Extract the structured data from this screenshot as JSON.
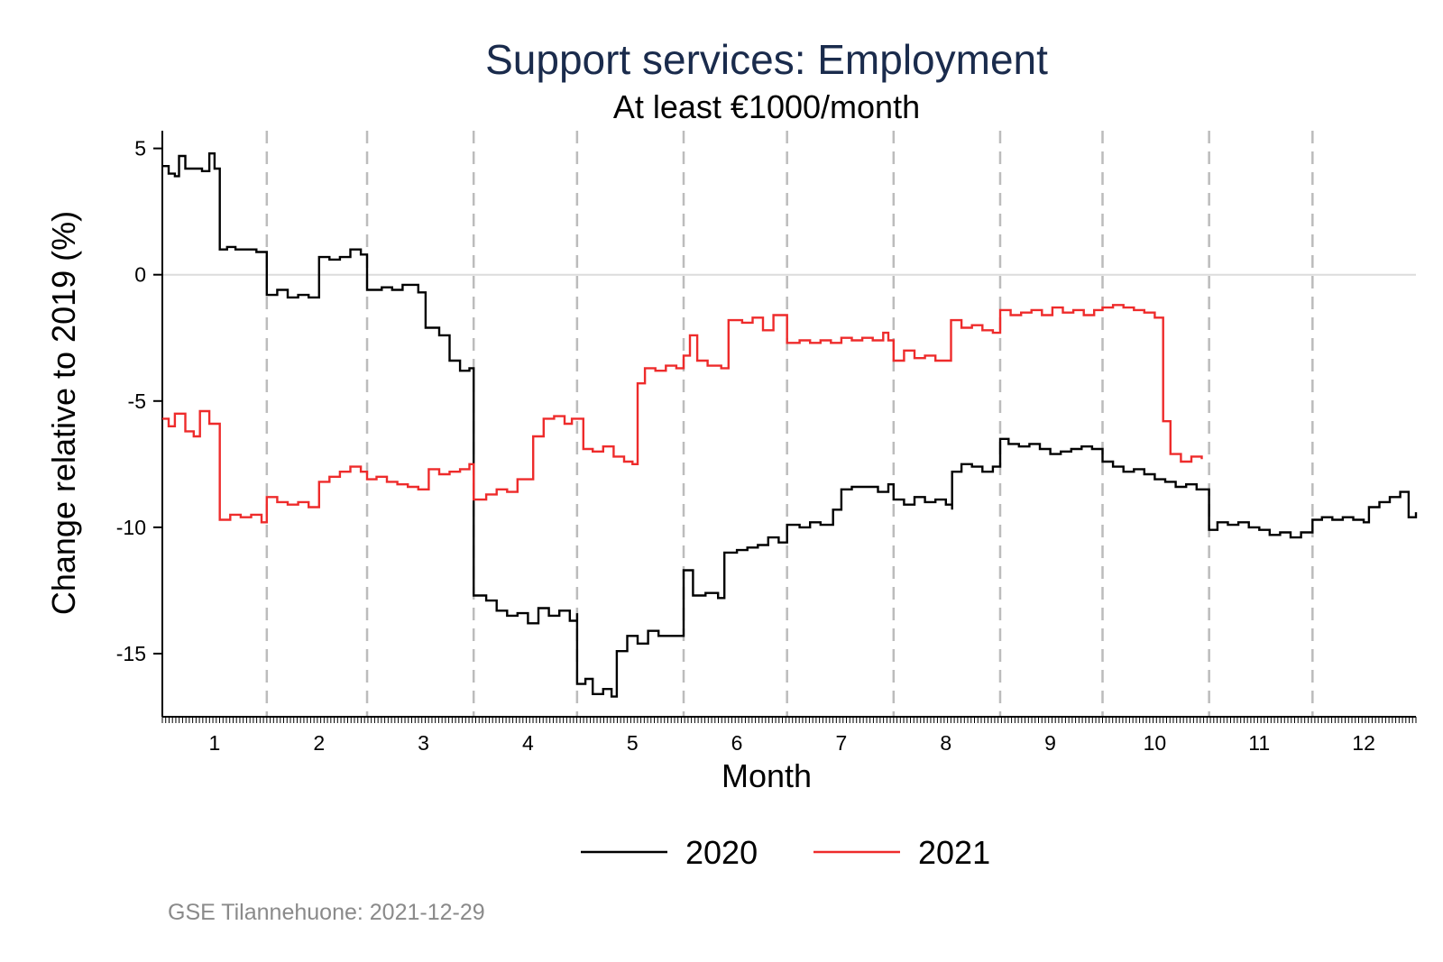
{
  "chart_data": {
    "type": "line",
    "title": "Support services: Employment",
    "subtitle": "At least €1000/month",
    "xlabel": "Month",
    "ylabel": "Change relative to 2019 (%)",
    "xlim": [
      0.5,
      12.5
    ],
    "ylim": [
      -17.5,
      5.7
    ],
    "x_ticks": [
      1,
      2,
      3,
      4,
      5,
      6,
      7,
      8,
      9,
      10,
      11,
      12
    ],
    "y_ticks": [
      5,
      0,
      -5,
      -10,
      -15
    ],
    "y_tick_labels": [
      "5",
      "0",
      "-5",
      "-10",
      "-15"
    ],
    "month_dividers": [
      1.5,
      2.46,
      3.48,
      4.47,
      5.49,
      6.48,
      7.5,
      8.52,
      9.5,
      10.52,
      11.51
    ],
    "reference_line_y": 0,
    "grid": false,
    "legend_position": "bottom",
    "series": [
      {
        "name": "2020",
        "color": "#000000",
        "points": [
          [
            0.5,
            4.3
          ],
          [
            0.56,
            4.0
          ],
          [
            0.62,
            3.9
          ],
          [
            0.66,
            4.7
          ],
          [
            0.72,
            4.2
          ],
          [
            0.88,
            4.1
          ],
          [
            0.95,
            4.8
          ],
          [
            1.0,
            4.2
          ],
          [
            1.05,
            1.0
          ],
          [
            1.12,
            1.1
          ],
          [
            1.2,
            1.0
          ],
          [
            1.3,
            1.0
          ],
          [
            1.4,
            0.9
          ],
          [
            1.5,
            0.6
          ],
          [
            1.5,
            -0.8
          ],
          [
            1.6,
            -0.6
          ],
          [
            1.7,
            -0.9
          ],
          [
            1.8,
            -0.8
          ],
          [
            1.9,
            -0.9
          ],
          [
            2.0,
            0.7
          ],
          [
            2.1,
            0.6
          ],
          [
            2.2,
            0.7
          ],
          [
            2.3,
            1.0
          ],
          [
            2.4,
            0.8
          ],
          [
            2.46,
            0.5
          ],
          [
            2.46,
            -0.6
          ],
          [
            2.6,
            -0.5
          ],
          [
            2.7,
            -0.6
          ],
          [
            2.8,
            -0.4
          ],
          [
            2.95,
            -0.7
          ],
          [
            3.02,
            -2.1
          ],
          [
            3.15,
            -2.4
          ],
          [
            3.25,
            -3.4
          ],
          [
            3.35,
            -3.8
          ],
          [
            3.44,
            -3.7
          ],
          [
            3.48,
            -4.0
          ],
          [
            3.48,
            -12.7
          ],
          [
            3.6,
            -12.9
          ],
          [
            3.7,
            -13.3
          ],
          [
            3.8,
            -13.5
          ],
          [
            3.9,
            -13.4
          ],
          [
            4.0,
            -13.8
          ],
          [
            4.1,
            -13.2
          ],
          [
            4.2,
            -13.5
          ],
          [
            4.3,
            -13.3
          ],
          [
            4.4,
            -13.7
          ],
          [
            4.47,
            -13.4
          ],
          [
            4.47,
            -16.2
          ],
          [
            4.55,
            -16.0
          ],
          [
            4.62,
            -16.6
          ],
          [
            4.72,
            -16.4
          ],
          [
            4.8,
            -16.7
          ],
          [
            4.85,
            -14.9
          ],
          [
            4.95,
            -14.3
          ],
          [
            5.05,
            -14.6
          ],
          [
            5.15,
            -14.1
          ],
          [
            5.25,
            -14.3
          ],
          [
            5.4,
            -14.3
          ],
          [
            5.49,
            -11.7
          ],
          [
            5.58,
            -12.7
          ],
          [
            5.7,
            -12.6
          ],
          [
            5.82,
            -12.8
          ],
          [
            5.88,
            -11.0
          ],
          [
            6.0,
            -10.9
          ],
          [
            6.1,
            -10.8
          ],
          [
            6.2,
            -10.7
          ],
          [
            6.3,
            -10.4
          ],
          [
            6.4,
            -10.6
          ],
          [
            6.48,
            -9.9
          ],
          [
            6.6,
            -10.0
          ],
          [
            6.7,
            -9.8
          ],
          [
            6.8,
            -9.9
          ],
          [
            6.92,
            -9.3
          ],
          [
            7.0,
            -8.5
          ],
          [
            7.1,
            -8.4
          ],
          [
            7.25,
            -8.4
          ],
          [
            7.35,
            -8.6
          ],
          [
            7.45,
            -8.3
          ],
          [
            7.5,
            -8.6
          ],
          [
            7.5,
            -8.9
          ],
          [
            7.6,
            -9.1
          ],
          [
            7.7,
            -8.8
          ],
          [
            7.8,
            -9.0
          ],
          [
            7.9,
            -8.9
          ],
          [
            8.0,
            -9.1
          ],
          [
            8.06,
            -9.3
          ],
          [
            8.06,
            -7.8
          ],
          [
            8.15,
            -7.5
          ],
          [
            8.25,
            -7.6
          ],
          [
            8.35,
            -7.8
          ],
          [
            8.45,
            -7.6
          ],
          [
            8.52,
            -6.5
          ],
          [
            8.6,
            -6.7
          ],
          [
            8.7,
            -6.8
          ],
          [
            8.8,
            -6.7
          ],
          [
            8.9,
            -6.9
          ],
          [
            9.0,
            -7.1
          ],
          [
            9.1,
            -7.0
          ],
          [
            9.2,
            -6.9
          ],
          [
            9.3,
            -6.8
          ],
          [
            9.4,
            -6.9
          ],
          [
            9.5,
            -7.4
          ],
          [
            9.6,
            -7.6
          ],
          [
            9.7,
            -7.8
          ],
          [
            9.8,
            -7.7
          ],
          [
            9.9,
            -7.9
          ],
          [
            10.0,
            -8.1
          ],
          [
            10.1,
            -8.2
          ],
          [
            10.2,
            -8.4
          ],
          [
            10.3,
            -8.3
          ],
          [
            10.4,
            -8.5
          ],
          [
            10.52,
            -10.1
          ],
          [
            10.6,
            -9.8
          ],
          [
            10.7,
            -9.9
          ],
          [
            10.8,
            -9.8
          ],
          [
            10.9,
            -10.0
          ],
          [
            11.0,
            -10.1
          ],
          [
            11.1,
            -10.3
          ],
          [
            11.2,
            -10.2
          ],
          [
            11.3,
            -10.4
          ],
          [
            11.4,
            -10.2
          ],
          [
            11.51,
            -9.7
          ],
          [
            11.6,
            -9.6
          ],
          [
            11.7,
            -9.7
          ],
          [
            11.8,
            -9.6
          ],
          [
            11.9,
            -9.7
          ],
          [
            12.0,
            -9.8
          ],
          [
            12.05,
            -9.2
          ],
          [
            12.15,
            -9.0
          ],
          [
            12.25,
            -8.8
          ],
          [
            12.35,
            -8.6
          ],
          [
            12.43,
            -9.6
          ],
          [
            12.5,
            -9.4
          ]
        ]
      },
      {
        "name": "2021",
        "color": "#ee2b2b",
        "points": [
          [
            0.5,
            -5.7
          ],
          [
            0.56,
            -6.0
          ],
          [
            0.62,
            -5.5
          ],
          [
            0.72,
            -6.2
          ],
          [
            0.8,
            -6.4
          ],
          [
            0.86,
            -5.4
          ],
          [
            0.95,
            -5.9
          ],
          [
            1.0,
            -5.9
          ],
          [
            1.05,
            -9.7
          ],
          [
            1.15,
            -9.5
          ],
          [
            1.25,
            -9.6
          ],
          [
            1.35,
            -9.5
          ],
          [
            1.45,
            -9.8
          ],
          [
            1.5,
            -8.8
          ],
          [
            1.6,
            -9.0
          ],
          [
            1.7,
            -9.1
          ],
          [
            1.8,
            -9.0
          ],
          [
            1.9,
            -9.2
          ],
          [
            2.0,
            -8.2
          ],
          [
            2.1,
            -8.0
          ],
          [
            2.2,
            -7.8
          ],
          [
            2.3,
            -7.6
          ],
          [
            2.4,
            -7.8
          ],
          [
            2.46,
            -8.1
          ],
          [
            2.55,
            -8.0
          ],
          [
            2.65,
            -8.2
          ],
          [
            2.75,
            -8.3
          ],
          [
            2.85,
            -8.4
          ],
          [
            2.95,
            -8.5
          ],
          [
            3.05,
            -7.7
          ],
          [
            3.15,
            -7.9
          ],
          [
            3.25,
            -7.8
          ],
          [
            3.35,
            -7.7
          ],
          [
            3.44,
            -7.5
          ],
          [
            3.48,
            -8.9
          ],
          [
            3.6,
            -8.7
          ],
          [
            3.7,
            -8.5
          ],
          [
            3.8,
            -8.6
          ],
          [
            3.9,
            -8.1
          ],
          [
            4.05,
            -6.4
          ],
          [
            4.15,
            -5.7
          ],
          [
            4.25,
            -5.6
          ],
          [
            4.35,
            -5.9
          ],
          [
            4.42,
            -5.7
          ],
          [
            4.53,
            -6.9
          ],
          [
            4.62,
            -7.0
          ],
          [
            4.72,
            -6.8
          ],
          [
            4.82,
            -7.2
          ],
          [
            4.92,
            -7.4
          ],
          [
            5.0,
            -7.5
          ],
          [
            5.05,
            -4.3
          ],
          [
            5.12,
            -3.7
          ],
          [
            5.22,
            -3.8
          ],
          [
            5.32,
            -3.6
          ],
          [
            5.42,
            -3.7
          ],
          [
            5.49,
            -3.2
          ],
          [
            5.55,
            -2.4
          ],
          [
            5.62,
            -3.4
          ],
          [
            5.72,
            -3.6
          ],
          [
            5.85,
            -3.7
          ],
          [
            5.92,
            -1.8
          ],
          [
            6.05,
            -1.9
          ],
          [
            6.15,
            -1.7
          ],
          [
            6.25,
            -2.2
          ],
          [
            6.35,
            -1.6
          ],
          [
            6.48,
            -2.7
          ],
          [
            6.6,
            -2.6
          ],
          [
            6.7,
            -2.7
          ],
          [
            6.8,
            -2.6
          ],
          [
            6.9,
            -2.7
          ],
          [
            7.0,
            -2.5
          ],
          [
            7.1,
            -2.6
          ],
          [
            7.2,
            -2.5
          ],
          [
            7.3,
            -2.6
          ],
          [
            7.4,
            -2.3
          ],
          [
            7.45,
            -2.6
          ],
          [
            7.5,
            -3.4
          ],
          [
            7.6,
            -3.0
          ],
          [
            7.7,
            -3.3
          ],
          [
            7.8,
            -3.2
          ],
          [
            7.9,
            -3.4
          ],
          [
            8.05,
            -1.8
          ],
          [
            8.15,
            -2.1
          ],
          [
            8.25,
            -2.0
          ],
          [
            8.35,
            -2.2
          ],
          [
            8.45,
            -2.3
          ],
          [
            8.52,
            -1.4
          ],
          [
            8.62,
            -1.6
          ],
          [
            8.72,
            -1.5
          ],
          [
            8.82,
            -1.4
          ],
          [
            8.92,
            -1.6
          ],
          [
            9.02,
            -1.3
          ],
          [
            9.12,
            -1.5
          ],
          [
            9.22,
            -1.4
          ],
          [
            9.32,
            -1.6
          ],
          [
            9.42,
            -1.4
          ],
          [
            9.5,
            -1.3
          ],
          [
            9.6,
            -1.2
          ],
          [
            9.7,
            -1.3
          ],
          [
            9.8,
            -1.4
          ],
          [
            9.9,
            -1.5
          ],
          [
            10.0,
            -1.7
          ],
          [
            10.08,
            -5.8
          ],
          [
            10.15,
            -7.1
          ],
          [
            10.25,
            -7.4
          ],
          [
            10.35,
            -7.2
          ],
          [
            10.45,
            -7.3
          ]
        ]
      }
    ]
  },
  "legend": {
    "items": [
      {
        "label": "2020",
        "color": "#000000"
      },
      {
        "label": "2021",
        "color": "#ee2b2b"
      }
    ]
  },
  "note": "GSE Tilannehuone: 2021-12-29"
}
